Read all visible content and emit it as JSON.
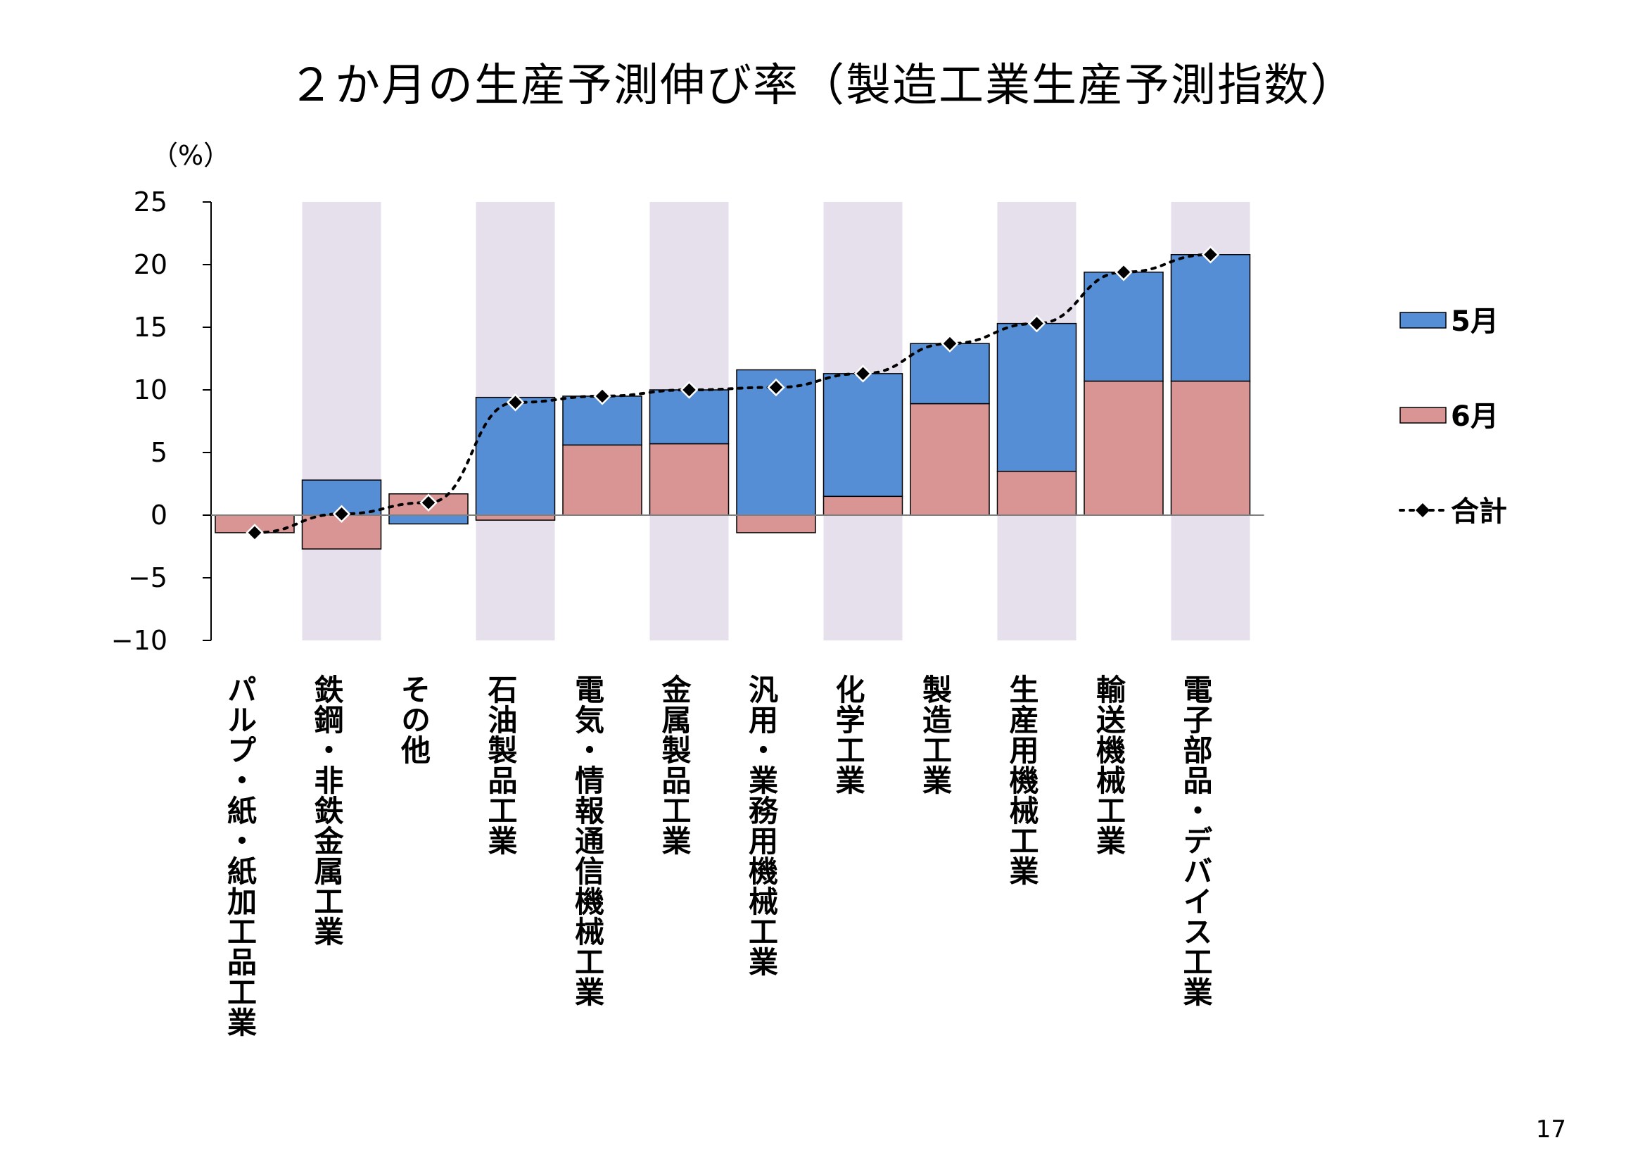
{
  "page": {
    "title": "２か月の生産予測伸び率（製造工業生産予測指数）",
    "page_number": "17"
  },
  "chart_data": {
    "type": "bar",
    "stacked": true,
    "title": "２か月の生産予測伸び率（製造工業生産予測指数）",
    "ylabel": "（%）",
    "ylim": [
      -10,
      25
    ],
    "yticks": [
      25,
      20,
      15,
      10,
      5,
      0,
      -5,
      -10
    ],
    "ytick_labels": [
      "25",
      "20",
      "15",
      "10",
      "5",
      "0",
      "−5",
      "−10"
    ],
    "categories": [
      "パルプ・紙・紙加工品工業",
      "鉄鋼・非鉄金属工業",
      "その他",
      "石油製品工業",
      "電気・情報通信機械工業",
      "金属製品工業",
      "汎用・業務用機械工業",
      "化学工業",
      "製造工業",
      "生産用機械工業",
      "輸送機械工業",
      "電子部品・デバイス工業"
    ],
    "series": [
      {
        "name": "6月",
        "kind": "bar",
        "color": "#d99594",
        "values": [
          -1.4,
          -2.7,
          1.7,
          -0.4,
          5.6,
          5.7,
          -1.4,
          1.5,
          8.9,
          3.5,
          10.7,
          10.7
        ]
      },
      {
        "name": "5月",
        "kind": "bar",
        "color": "#558ed5",
        "values": [
          0.0,
          2.8,
          -0.7,
          9.4,
          3.9,
          4.3,
          11.6,
          9.8,
          4.8,
          11.8,
          8.7,
          10.1
        ]
      },
      {
        "name": "合計",
        "kind": "line-marker",
        "color": "#000000",
        "values": [
          -1.4,
          0.1,
          1.0,
          9.0,
          9.5,
          10.0,
          10.2,
          11.3,
          13.7,
          15.3,
          19.4,
          20.8
        ]
      }
    ],
    "shaded_columns": [
      1,
      3,
      5,
      7,
      9,
      11
    ],
    "shade_color": "#e6e0ec",
    "legend": {
      "placement": "right",
      "entries": [
        "5月",
        "6月",
        "合計"
      ]
    }
  }
}
